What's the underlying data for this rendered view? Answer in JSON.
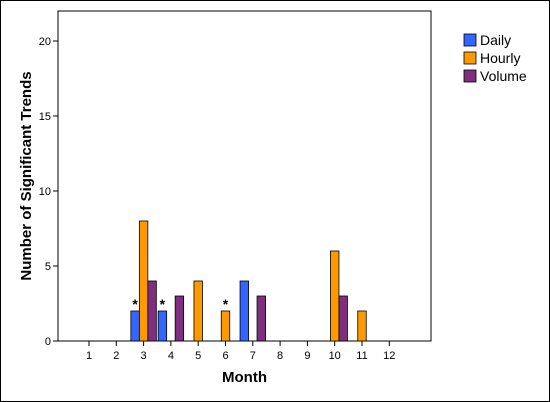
{
  "chart_data": {
    "type": "bar",
    "title": "",
    "xlabel": "Month",
    "ylabel": "Number of Significant Trends",
    "categories": [
      "1",
      "2",
      "3",
      "4",
      "5",
      "6",
      "7",
      "8",
      "9",
      "10",
      "11",
      "12"
    ],
    "ylim": [
      0,
      22
    ],
    "yticks": [
      0,
      5,
      10,
      15,
      20
    ],
    "grid": false,
    "legend_position": "top-right",
    "series": [
      {
        "name": "Daily",
        "color": "#3366ff",
        "values": [
          0,
          0,
          2,
          2,
          0,
          0,
          4,
          0,
          0,
          0,
          0,
          0
        ]
      },
      {
        "name": "Hourly",
        "color": "#ff9900",
        "values": [
          0,
          0,
          8,
          0,
          4,
          2,
          0,
          0,
          0,
          6,
          2,
          0
        ]
      },
      {
        "name": "Volume",
        "color": "#7f2f7f",
        "values": [
          0,
          0,
          4,
          3,
          0,
          0,
          3,
          0,
          0,
          3,
          0,
          0
        ]
      }
    ],
    "annotations": [
      {
        "text": "*",
        "category": "3",
        "series": "Daily"
      },
      {
        "text": "*",
        "category": "4",
        "series": "Daily"
      },
      {
        "text": "*",
        "category": "6",
        "series": "Hourly"
      }
    ]
  }
}
